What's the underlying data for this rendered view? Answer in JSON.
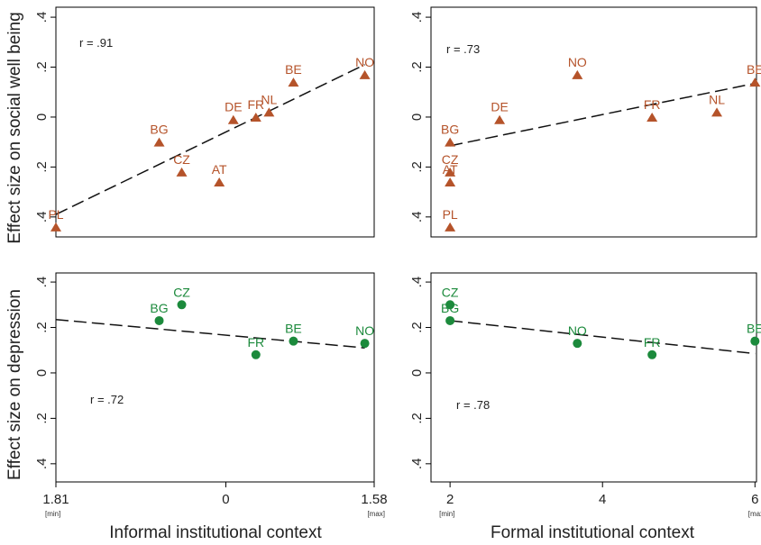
{
  "colors": {
    "orange": "#b5532a",
    "green": "#1c8a3c",
    "line": "#111111",
    "frame": "#000000"
  },
  "axis_titles": {
    "y_top": "Effect size on social well being",
    "y_bottom": "Effect size on depression",
    "x_left": "Informal institutional context",
    "x_right": "Formal institutional context"
  },
  "chart_data": [
    {
      "id": "top-left",
      "type": "scatter",
      "marker": "triangle",
      "color": "orange",
      "r_label": "r = .91",
      "xlim": [
        -1.81,
        1.58
      ],
      "ylim": [
        -0.48,
        0.44
      ],
      "yticks": [
        0.4,
        0.2,
        0,
        -0.2,
        -0.4
      ],
      "ytick_labels": [
        ".4",
        ".2",
        "0",
        ".2",
        ".4"
      ],
      "points": [
        {
          "label": "PL",
          "x": -1.81,
          "y": -0.44
        },
        {
          "label": "BG",
          "x": -0.71,
          "y": -0.1
        },
        {
          "label": "CZ",
          "x": -0.47,
          "y": -0.22
        },
        {
          "label": "AT",
          "x": -0.07,
          "y": -0.26
        },
        {
          "label": "DE",
          "x": 0.08,
          "y": -0.01
        },
        {
          "label": "FR",
          "x": 0.32,
          "y": 0.0
        },
        {
          "label": "NL",
          "x": 0.46,
          "y": 0.02
        },
        {
          "label": "BE",
          "x": 0.72,
          "y": 0.14
        },
        {
          "label": "NO",
          "x": 1.48,
          "y": 0.17
        }
      ],
      "fit": {
        "x": [
          -1.81,
          1.48
        ],
        "y": [
          -0.39,
          0.21
        ]
      }
    },
    {
      "id": "top-right",
      "type": "scatter",
      "marker": "triangle",
      "color": "orange",
      "r_label": "r = .73",
      "xlim": [
        1.75,
        6.02
      ],
      "ylim": [
        -0.48,
        0.44
      ],
      "yticks": [
        0.4,
        0.2,
        0,
        -0.2,
        -0.4
      ],
      "ytick_labels": [
        ".4",
        ".2",
        "0",
        ".2",
        ".4"
      ],
      "points": [
        {
          "label": "BG",
          "x": 2,
          "y": -0.1
        },
        {
          "label": "CZ",
          "x": 2,
          "y": -0.22
        },
        {
          "label": "AT",
          "x": 2,
          "y": -0.26
        },
        {
          "label": "PL",
          "x": 2,
          "y": -0.44
        },
        {
          "label": "DE",
          "x": 2.65,
          "y": -0.01
        },
        {
          "label": "NO",
          "x": 3.67,
          "y": 0.17
        },
        {
          "label": "FR",
          "x": 4.65,
          "y": 0.0
        },
        {
          "label": "NL",
          "x": 5.5,
          "y": 0.02
        },
        {
          "label": "BE",
          "x": 6,
          "y": 0.14
        }
      ],
      "fit": {
        "x": [
          2,
          6
        ],
        "y": [
          -0.115,
          0.135
        ]
      }
    },
    {
      "id": "bottom-left",
      "type": "scatter",
      "marker": "circle",
      "color": "green",
      "r_label": "r =  .72",
      "xlim": [
        -1.81,
        1.58
      ],
      "ylim": [
        -0.48,
        0.44
      ],
      "yticks": [
        0.4,
        0.2,
        0,
        -0.2,
        -0.4
      ],
      "ytick_labels": [
        ".4",
        ".2",
        "0",
        ".2",
        ".4"
      ],
      "xticks": [
        -1.81,
        0,
        1.58
      ],
      "xtick_labels": [
        "1.81",
        "0",
        "1.58"
      ],
      "xtick_notes": [
        "[min]",
        "",
        "[max]"
      ],
      "points": [
        {
          "label": "BG",
          "x": -0.71,
          "y": 0.23
        },
        {
          "label": "CZ",
          "x": -0.47,
          "y": 0.3
        },
        {
          "label": "FR",
          "x": 0.32,
          "y": 0.08
        },
        {
          "label": "BE",
          "x": 0.72,
          "y": 0.14
        },
        {
          "label": "NO",
          "x": 1.48,
          "y": 0.13
        }
      ],
      "fit": {
        "x": [
          -1.81,
          1.48
        ],
        "y": [
          0.235,
          0.11
        ]
      }
    },
    {
      "id": "bottom-right",
      "type": "scatter",
      "marker": "circle",
      "color": "green",
      "r_label": "r =  .78",
      "xlim": [
        1.75,
        6.02
      ],
      "ylim": [
        -0.48,
        0.44
      ],
      "yticks": [
        0.4,
        0.2,
        0,
        -0.2,
        -0.4
      ],
      "ytick_labels": [
        ".4",
        ".2",
        "0",
        ".2",
        ".4"
      ],
      "xticks": [
        2,
        4,
        6
      ],
      "xtick_labels": [
        "2",
        "4",
        "6"
      ],
      "xtick_notes": [
        "[min]",
        "",
        "[max]"
      ],
      "points": [
        {
          "label": "CZ",
          "x": 2,
          "y": 0.3
        },
        {
          "label": "BG",
          "x": 2,
          "y": 0.23
        },
        {
          "label": "NO",
          "x": 3.67,
          "y": 0.13
        },
        {
          "label": "FR",
          "x": 4.65,
          "y": 0.08
        },
        {
          "label": "BE",
          "x": 6,
          "y": 0.14
        }
      ],
      "fit": {
        "x": [
          2,
          6
        ],
        "y": [
          0.23,
          0.085
        ]
      }
    }
  ]
}
